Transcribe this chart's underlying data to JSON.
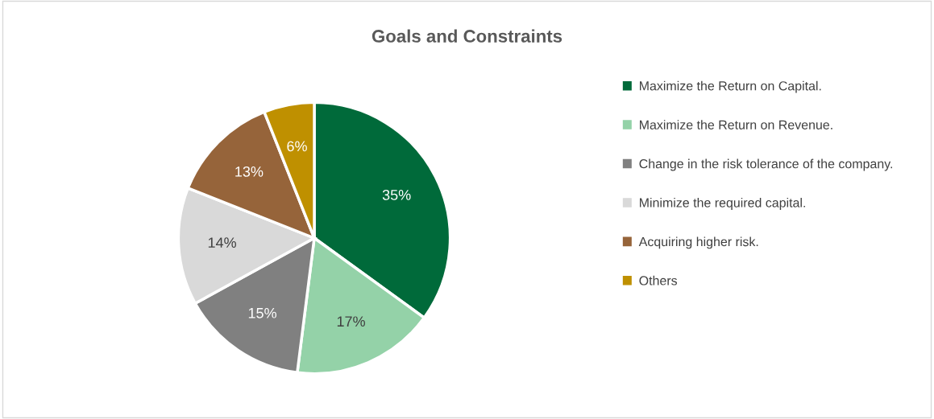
{
  "chart_data": {
    "type": "pie",
    "title": "Goals and Constraints",
    "categories": [
      "Maximize the Return on Capital.",
      "Maximize the Return on Revenue.",
      "Change in the risk tolerance of the company.",
      "Minimize the required capital.",
      "Acquiring higher risk.",
      "Others"
    ],
    "values": [
      35,
      17,
      15,
      14,
      13,
      6
    ],
    "colors": [
      "#006a3a",
      "#94d2a8",
      "#808080",
      "#d9d9d9",
      "#96643a",
      "#bf9000"
    ],
    "value_labels": [
      "35%",
      "17%",
      "15%",
      "14%",
      "13%",
      "6%"
    ],
    "data_labels": true,
    "legend": "right"
  }
}
